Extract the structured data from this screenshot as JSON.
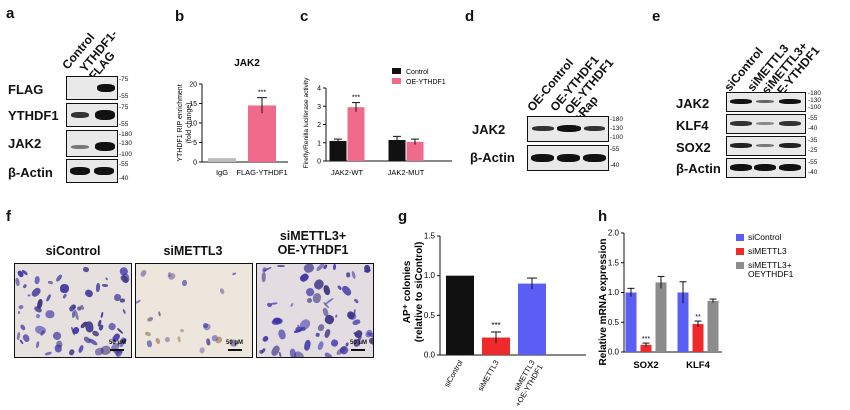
{
  "panel_labels": {
    "a": "a",
    "b": "b",
    "c": "c",
    "d": "d",
    "e": "e",
    "f": "f",
    "g": "g",
    "h": "h"
  },
  "panel_a": {
    "lanes": [
      "Control",
      "YTHDF1-\nFLAG"
    ],
    "rows": [
      "FLAG",
      "YTHDF1",
      "JAK2",
      "β-Actin"
    ],
    "mw": [
      [
        "-75",
        "-55"
      ],
      [
        "-75",
        "-55"
      ],
      [
        "-180",
        "-130",
        "-100"
      ],
      [
        "-55",
        "-40"
      ]
    ]
  },
  "panel_d": {
    "lanes": [
      "OE-Control",
      "OE-YTHDF1",
      "OE-YTHDF1\n+Rap"
    ],
    "rows": [
      "JAK2",
      "β-Actin"
    ],
    "mw": [
      [
        "-180",
        "-130",
        "-100"
      ],
      [
        "-55",
        "-40"
      ]
    ]
  },
  "panel_e": {
    "lanes": [
      "siControl",
      "siMETTL3",
      "siMETTL3+\nOE-YTHDF1"
    ],
    "rows": [
      "JAK2",
      "KLF4",
      "SOX2",
      "β-Actin"
    ],
    "mw": [
      [
        "-180",
        "-130",
        "-100"
      ],
      [
        "-55",
        "-40"
      ],
      [
        "-35",
        "-25"
      ],
      [
        "-55",
        "-40"
      ]
    ]
  },
  "panel_f": {
    "titles": [
      "siControl",
      "siMETTL3",
      "siMETTL3+\nOE-YTHDF1"
    ],
    "scale_label": "50 μM"
  },
  "colors": {
    "black": "#111111",
    "pink": "#f06b8b",
    "gray": "#bdbdbd",
    "blue": "#5a5ef5",
    "red": "#ee2a2a",
    "darkgray": "#8c8c8c"
  },
  "chart_data": [
    {
      "type": "bar",
      "title": "JAK2",
      "ylabel": "YTHDF1 RIP enrichment\n(fold change)",
      "ylim": [
        0,
        20
      ],
      "yticks": [
        "0",
        "5",
        "10",
        "15",
        "20"
      ],
      "categories": [
        "IgG",
        "FLAG-YTHDF1"
      ],
      "values": [
        1,
        14.5
      ],
      "errors": [
        0,
        2
      ],
      "annotations": [
        "",
        "***"
      ]
    },
    {
      "type": "bar",
      "title": "",
      "ylabel": "Firefly/Renilla luciferase activity",
      "ylim": [
        0,
        4
      ],
      "yticks": [
        "0",
        "1",
        "2",
        "3",
        "4"
      ],
      "categories": [
        "JAK2-WT",
        "JAK2-MUT"
      ],
      "series": [
        {
          "name": "Control",
          "values": [
            1.1,
            1.15
          ],
          "errors": [
            0.1,
            0.2
          ]
        },
        {
          "name": "OE-YTHDF1",
          "values": [
            2.95,
            1.05
          ],
          "errors": [
            0.25,
            0.15
          ]
        }
      ],
      "annotations": [
        "***",
        ""
      ],
      "legend": "top-right"
    },
    {
      "type": "bar",
      "title": "",
      "ylabel": "AP⁺ colonies\n(relative to siControl)",
      "ylim": [
        0,
        1.5
      ],
      "yticks": [
        "0.0",
        "0.5",
        "1.0",
        "1.5"
      ],
      "categories": [
        "siControl",
        "siMETTL3",
        "siMETTL3\n+OE-YTHDF1"
      ],
      "values": [
        1.0,
        0.22,
        0.9
      ],
      "errors": [
        0,
        0.07,
        0.07
      ],
      "annotations": [
        "",
        "***",
        ""
      ]
    },
    {
      "type": "bar",
      "title": "",
      "ylabel": "Relative mRNA expression",
      "ylim": [
        0,
        2.0
      ],
      "yticks": [
        "0.0",
        "0.5",
        "1.0",
        "1.5",
        "2.0"
      ],
      "categories": [
        "SOX2",
        "KLF4"
      ],
      "series": [
        {
          "name": "siControl",
          "values": [
            1.0,
            1.0
          ],
          "errors": [
            0.07,
            0.18
          ]
        },
        {
          "name": "siMETTL3",
          "values": [
            0.12,
            0.47
          ],
          "errors": [
            0.03,
            0.05
          ]
        },
        {
          "name": "siMETTL3+\nOEYTHDF1",
          "values": [
            1.17,
            0.86
          ],
          "errors": [
            0.1,
            0.03
          ]
        }
      ],
      "annotations": [
        [
          "",
          "***",
          ""
        ],
        [
          "",
          "**",
          ""
        ]
      ],
      "legend": "top-right"
    }
  ]
}
